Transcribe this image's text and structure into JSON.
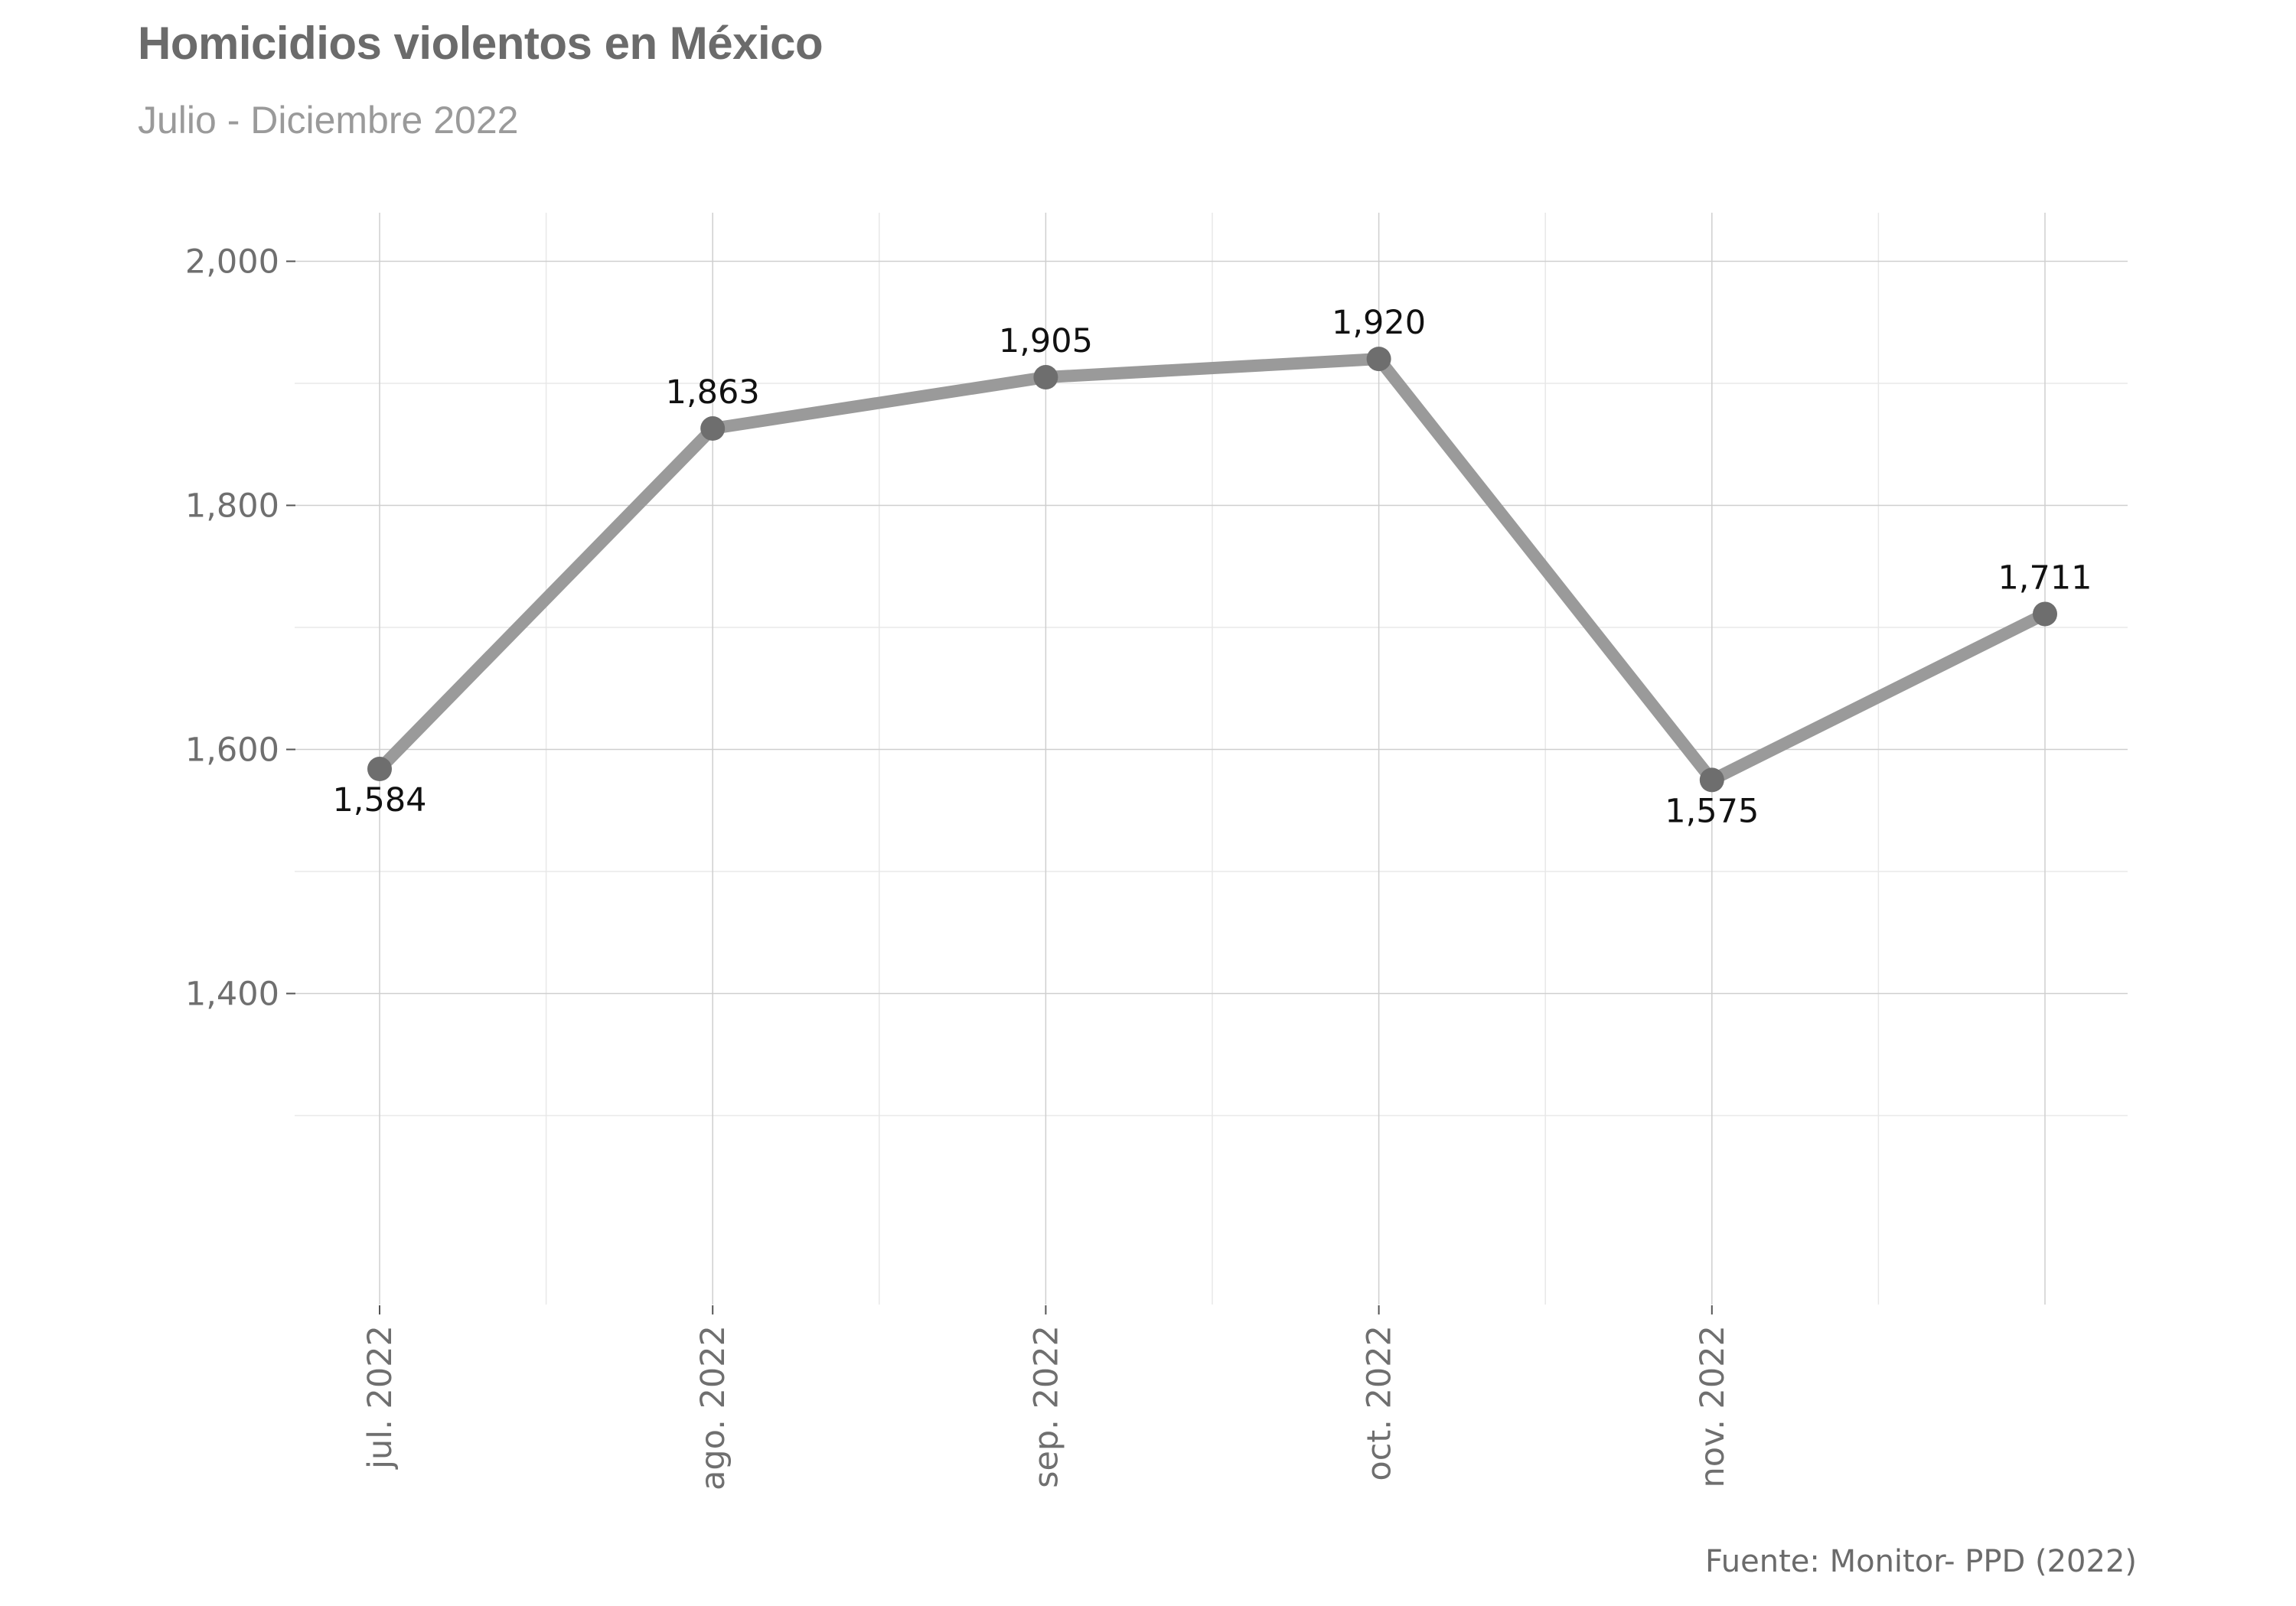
{
  "title": "Homicidios violentos en México",
  "subtitle": "Julio - Diciembre 2022",
  "caption": "Fuente: Monitor- PPD (2022)",
  "colors": {
    "line": "#9a9a9a",
    "point": "#6e6e6e",
    "grid_major": "#cfcfcf",
    "grid_minor": "#e8e8e8"
  },
  "chart_data": {
    "type": "line",
    "title": "Homicidios violentos en México",
    "subtitle": "Julio - Diciembre 2022",
    "xlabel": "",
    "ylabel": "",
    "x": [
      "2022-07",
      "2022-08",
      "2022-09",
      "2022-10",
      "2022-11",
      "2022-12"
    ],
    "x_tick_labels": [
      "jul. 2022",
      "ago. 2022",
      "sep. 2022",
      "oct. 2022",
      "nov. 2022"
    ],
    "y_tick_labels": [
      "1,400",
      "1,600",
      "1,800",
      "2,000"
    ],
    "y_ticks": [
      1400,
      1600,
      1800,
      2000
    ],
    "ylim": [
      1300,
      2035
    ],
    "grid": true,
    "legend": "none",
    "series": [
      {
        "values": [
          1584,
          1863,
          1905,
          1920,
          1575,
          1711
        ],
        "data_labels": [
          "1,584",
          "1,863",
          "1,905",
          "1,920",
          "1,575",
          "1,711"
        ]
      }
    ]
  }
}
